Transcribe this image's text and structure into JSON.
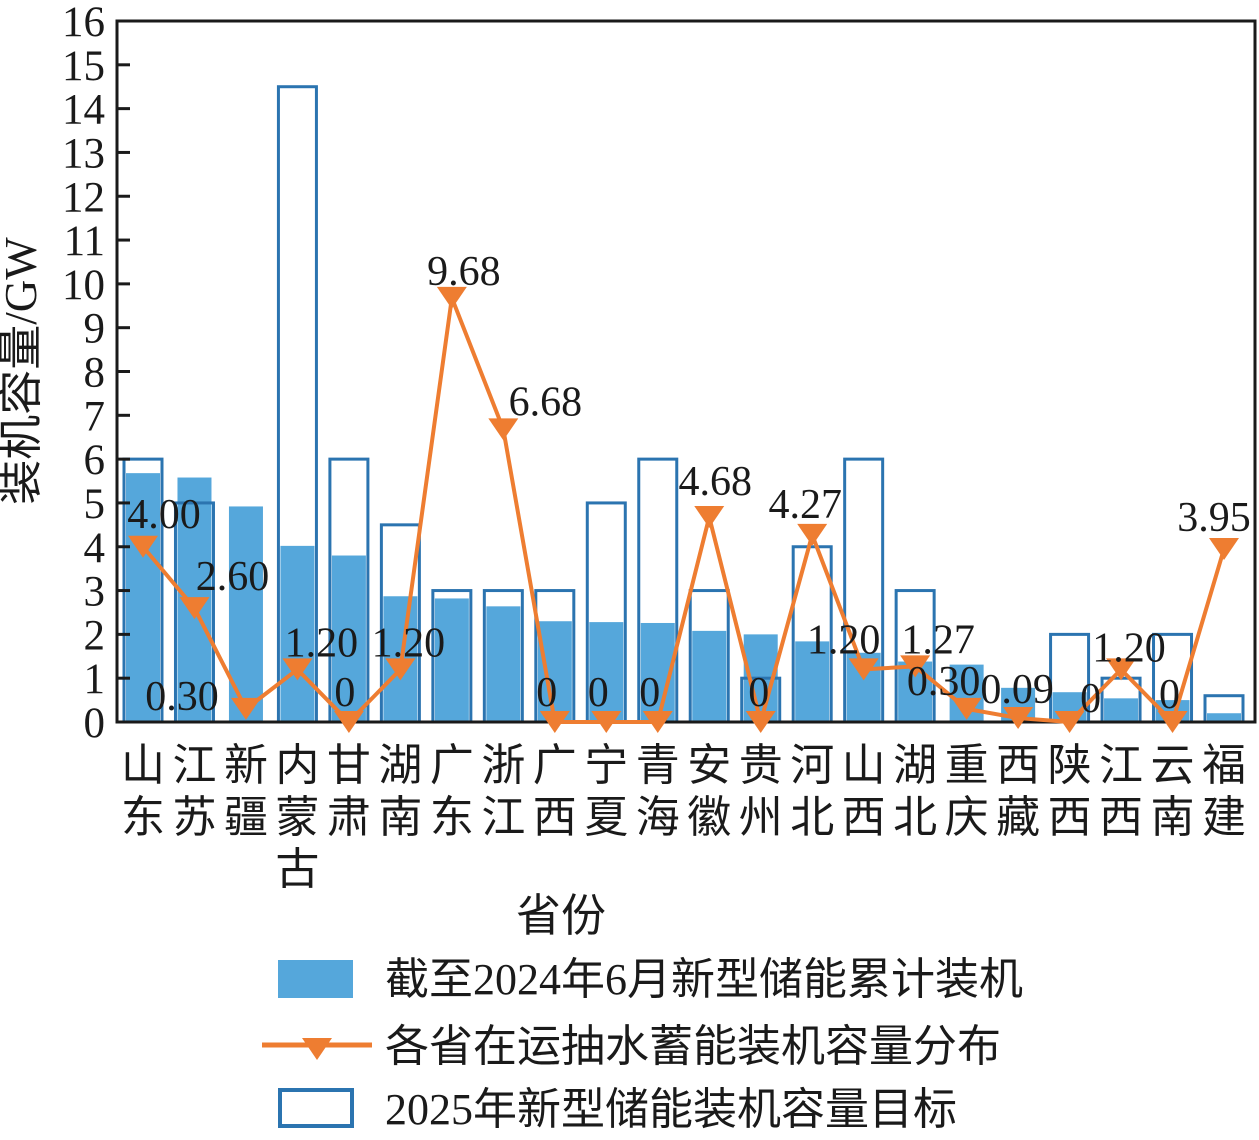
{
  "figure": {
    "background": "#ffffff",
    "text_color": "#1a1a1a",
    "axis_color": "#1a1a1a"
  },
  "axes": {
    "ylabel": "装机容量/GW",
    "xlabel": "省份",
    "ylim": [
      0,
      16
    ],
    "ytick_labels": [
      "0",
      "1",
      "2",
      "3",
      "4",
      "5",
      "6",
      "7",
      "8",
      "9",
      "10",
      "11",
      "12",
      "13",
      "14",
      "15",
      "16"
    ]
  },
  "legend": {
    "items": [
      {
        "label": "截至2024年6月新型储能累计装机",
        "swatch": "filled-bar",
        "color": "#55a7db"
      },
      {
        "label": "各省在运抽水蓄能装机容量分布",
        "swatch": "line-triangle-marker",
        "color": "#ee7d31"
      },
      {
        "label": "2025年新型储能装机容量目标",
        "swatch": "outlined-bar",
        "color": "#2b74b0"
      }
    ]
  },
  "chart_data": {
    "type": "bar",
    "subtype": "overlay-bars-plus-line-combo",
    "title": "",
    "xlabel": "省份",
    "ylabel": "装机容量/GW",
    "ylim": [
      0,
      16
    ],
    "grid": false,
    "legend_position": "below-left",
    "categories": [
      "山东",
      "江苏",
      "新疆",
      "内蒙古",
      "甘肃",
      "湖南",
      "广东",
      "浙江",
      "广西",
      "宁夏",
      "青海",
      "安徽",
      "贵州",
      "河北",
      "山西",
      "湖北",
      "重庆",
      "西藏",
      "陕西",
      "江西",
      "云南",
      "福建"
    ],
    "series": [
      {
        "name": "截至2024年6月新型储能累计装机",
        "type": "bar",
        "style": "filled",
        "color": "#55a7db",
        "values": [
          5.68,
          5.58,
          4.92,
          4.02,
          3.8,
          2.87,
          2.82,
          2.64,
          2.3,
          2.28,
          2.26,
          2.08,
          2.0,
          1.84,
          1.58,
          1.38,
          1.31,
          0.78,
          0.68,
          0.54,
          0.5,
          0.2
        ]
      },
      {
        "name": "2025年新型储能装机容量目标",
        "type": "bar",
        "style": "outline",
        "color": "#2b74b0",
        "values": [
          6.0,
          5.0,
          null,
          14.5,
          6.0,
          4.5,
          3.0,
          3.0,
          3.0,
          5.0,
          6.0,
          3.0,
          1.0,
          4.0,
          6.0,
          3.0,
          null,
          null,
          2.0,
          1.0,
          2.0,
          0.6
        ]
      },
      {
        "name": "各省在运抽水蓄能装机容量分布",
        "type": "line",
        "marker": "triangle-down",
        "color": "#ee7d31",
        "values": [
          4.0,
          2.6,
          0.3,
          1.2,
          0,
          1.2,
          9.68,
          6.68,
          0,
          0,
          0,
          4.68,
          0,
          4.27,
          1.2,
          1.27,
          0.3,
          0.09,
          0,
          1.2,
          0,
          3.95
        ],
        "point_labels": [
          "4.00",
          "2.60",
          "0.30",
          "1.20",
          "0",
          "1.20",
          "9.68",
          "6.68",
          "0",
          "0",
          "0",
          "4.68",
          "0",
          "4.27",
          "1.20",
          "1.27",
          "0.30",
          "0.09",
          "0",
          "1.20",
          "0",
          "3.95"
        ],
        "label_offsets": [
          [
            21,
            -19
          ],
          [
            38,
            -18
          ],
          [
            -64,
            1
          ],
          [
            24,
            -13
          ],
          [
            -4,
            -16
          ],
          [
            8,
            -13
          ],
          [
            12,
            -13
          ],
          [
            42,
            -14
          ],
          [
            -8,
            -16
          ],
          [
            -8,
            -16
          ],
          [
            -8,
            -16
          ],
          [
            6,
            -22
          ],
          [
            -2,
            -16
          ],
          [
            -7,
            -17
          ],
          [
            -20,
            -16
          ],
          [
            23,
            -13
          ],
          [
            -23,
            -14
          ],
          [
            -1,
            -15
          ],
          [
            21,
            -10
          ],
          [
            8,
            -8
          ],
          [
            -3,
            -14
          ],
          [
            -10,
            -18
          ]
        ]
      }
    ]
  }
}
